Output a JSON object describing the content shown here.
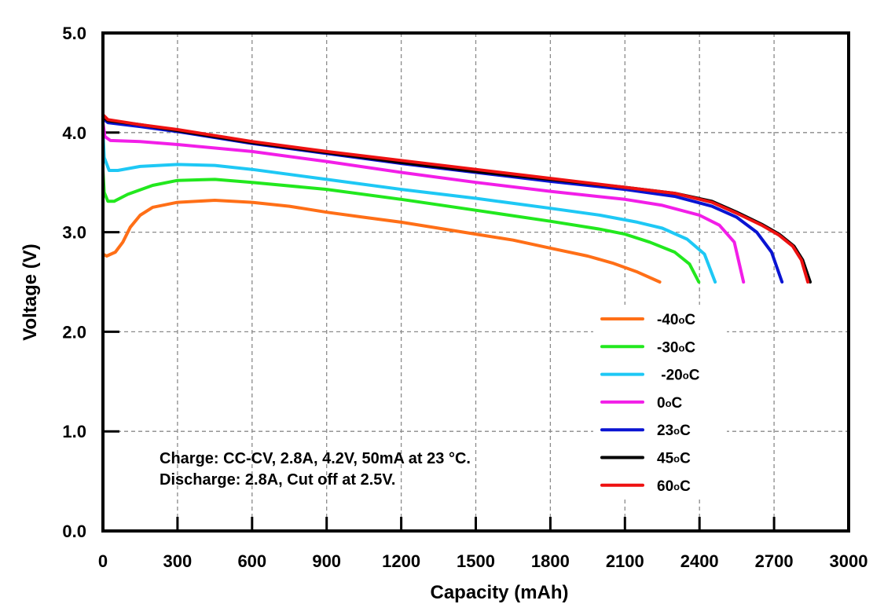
{
  "chart_data": {
    "type": "line",
    "title": "",
    "xlabel": "Capacity (mAh)",
    "ylabel": "Voltage (V)",
    "xlim": [
      0,
      3000
    ],
    "ylim": [
      0.0,
      5.0
    ],
    "x_ticks": [
      0,
      300,
      600,
      900,
      1200,
      1500,
      1800,
      2100,
      2400,
      2700,
      3000
    ],
    "x_tick_labels": [
      "0",
      "300",
      "600",
      "900",
      "1200",
      "1500",
      "1800",
      "2100",
      "2400",
      "2700",
      "3000"
    ],
    "y_ticks": [
      0,
      1,
      2,
      3,
      4,
      5
    ],
    "y_tick_labels": [
      "0.0",
      "1.0",
      "2.0",
      "3.0",
      "4.0",
      "5.0"
    ],
    "grid": true,
    "legend_position": "bottom-right",
    "annotations": [
      "Charge: CC-CV, 2.8A, 4.2V, 50mA at 23 °C.",
      "Discharge: 2.8A, Cut off at 2.5V."
    ],
    "series": [
      {
        "name": "-40°C",
        "label_prefix": "-40",
        "color": "#ff6f17",
        "points": [
          [
            0,
            3.3
          ],
          [
            0,
            2.78
          ],
          [
            15,
            2.76
          ],
          [
            50,
            2.8
          ],
          [
            80,
            2.9
          ],
          [
            110,
            3.05
          ],
          [
            150,
            3.17
          ],
          [
            200,
            3.25
          ],
          [
            300,
            3.3
          ],
          [
            450,
            3.32
          ],
          [
            600,
            3.3
          ],
          [
            750,
            3.26
          ],
          [
            900,
            3.2
          ],
          [
            1050,
            3.15
          ],
          [
            1200,
            3.1
          ],
          [
            1350,
            3.04
          ],
          [
            1500,
            2.98
          ],
          [
            1650,
            2.92
          ],
          [
            1800,
            2.84
          ],
          [
            1950,
            2.76
          ],
          [
            2050,
            2.69
          ],
          [
            2150,
            2.6
          ],
          [
            2240,
            2.5
          ]
        ]
      },
      {
        "name": "-30°C",
        "label_prefix": "-30",
        "color": "#22e81e",
        "points": [
          [
            0,
            3.62
          ],
          [
            5,
            3.4
          ],
          [
            20,
            3.31
          ],
          [
            45,
            3.31
          ],
          [
            100,
            3.38
          ],
          [
            200,
            3.47
          ],
          [
            300,
            3.52
          ],
          [
            450,
            3.53
          ],
          [
            600,
            3.5
          ],
          [
            900,
            3.43
          ],
          [
            1200,
            3.33
          ],
          [
            1500,
            3.22
          ],
          [
            1800,
            3.11
          ],
          [
            2000,
            3.03
          ],
          [
            2100,
            2.98
          ],
          [
            2200,
            2.9
          ],
          [
            2300,
            2.8
          ],
          [
            2360,
            2.68
          ],
          [
            2397,
            2.5
          ]
        ]
      },
      {
        "name": "-20°C",
        "label_prefix": " -20",
        "color": "#1ec8f5",
        "points": [
          [
            0,
            4.02
          ],
          [
            5,
            3.75
          ],
          [
            25,
            3.62
          ],
          [
            60,
            3.62
          ],
          [
            150,
            3.66
          ],
          [
            300,
            3.68
          ],
          [
            450,
            3.67
          ],
          [
            600,
            3.63
          ],
          [
            900,
            3.53
          ],
          [
            1200,
            3.43
          ],
          [
            1500,
            3.34
          ],
          [
            1800,
            3.24
          ],
          [
            2000,
            3.17
          ],
          [
            2150,
            3.1
          ],
          [
            2250,
            3.04
          ],
          [
            2350,
            2.93
          ],
          [
            2420,
            2.78
          ],
          [
            2463,
            2.5
          ]
        ]
      },
      {
        "name": "0°C",
        "label_prefix": "0",
        "color": "#f21ee8",
        "points": [
          [
            0,
            4.1
          ],
          [
            8,
            3.96
          ],
          [
            30,
            3.92
          ],
          [
            150,
            3.91
          ],
          [
            300,
            3.88
          ],
          [
            600,
            3.81
          ],
          [
            900,
            3.71
          ],
          [
            1200,
            3.6
          ],
          [
            1500,
            3.5
          ],
          [
            1800,
            3.41
          ],
          [
            2100,
            3.33
          ],
          [
            2250,
            3.27
          ],
          [
            2400,
            3.17
          ],
          [
            2480,
            3.07
          ],
          [
            2540,
            2.9
          ],
          [
            2577,
            2.5
          ]
        ]
      },
      {
        "name": "23°C",
        "label_prefix": "23",
        "color": "#0a14d2",
        "points": [
          [
            0,
            4.14
          ],
          [
            20,
            4.1
          ],
          [
            150,
            4.06
          ],
          [
            300,
            4.01
          ],
          [
            600,
            3.89
          ],
          [
            900,
            3.79
          ],
          [
            1200,
            3.69
          ],
          [
            1500,
            3.6
          ],
          [
            1800,
            3.51
          ],
          [
            2100,
            3.43
          ],
          [
            2300,
            3.36
          ],
          [
            2450,
            3.26
          ],
          [
            2550,
            3.15
          ],
          [
            2630,
            3.0
          ],
          [
            2690,
            2.8
          ],
          [
            2732,
            2.5
          ]
        ]
      },
      {
        "name": "45°C",
        "label_prefix": "45",
        "color": "#000000",
        "points": [
          [
            0,
            4.16
          ],
          [
            20,
            4.12
          ],
          [
            150,
            4.08
          ],
          [
            300,
            4.02
          ],
          [
            600,
            3.9
          ],
          [
            900,
            3.8
          ],
          [
            1200,
            3.7
          ],
          [
            1500,
            3.61
          ],
          [
            1800,
            3.53
          ],
          [
            2100,
            3.45
          ],
          [
            2300,
            3.39
          ],
          [
            2450,
            3.31
          ],
          [
            2550,
            3.2
          ],
          [
            2650,
            3.08
          ],
          [
            2720,
            2.98
          ],
          [
            2780,
            2.86
          ],
          [
            2815,
            2.72
          ],
          [
            2845,
            2.5
          ]
        ]
      },
      {
        "name": "60°C",
        "label_prefix": "60",
        "color": "#ee1111",
        "points": [
          [
            0,
            4.18
          ],
          [
            20,
            4.13
          ],
          [
            150,
            4.08
          ],
          [
            300,
            4.03
          ],
          [
            600,
            3.91
          ],
          [
            900,
            3.81
          ],
          [
            1200,
            3.72
          ],
          [
            1500,
            3.63
          ],
          [
            1800,
            3.54
          ],
          [
            2100,
            3.45
          ],
          [
            2300,
            3.39
          ],
          [
            2450,
            3.3
          ],
          [
            2550,
            3.19
          ],
          [
            2650,
            3.07
          ],
          [
            2720,
            2.97
          ],
          [
            2775,
            2.86
          ],
          [
            2810,
            2.72
          ],
          [
            2836,
            2.5
          ]
        ]
      }
    ]
  },
  "legend": {
    "degree_symbol": "o",
    "unit": "C"
  }
}
